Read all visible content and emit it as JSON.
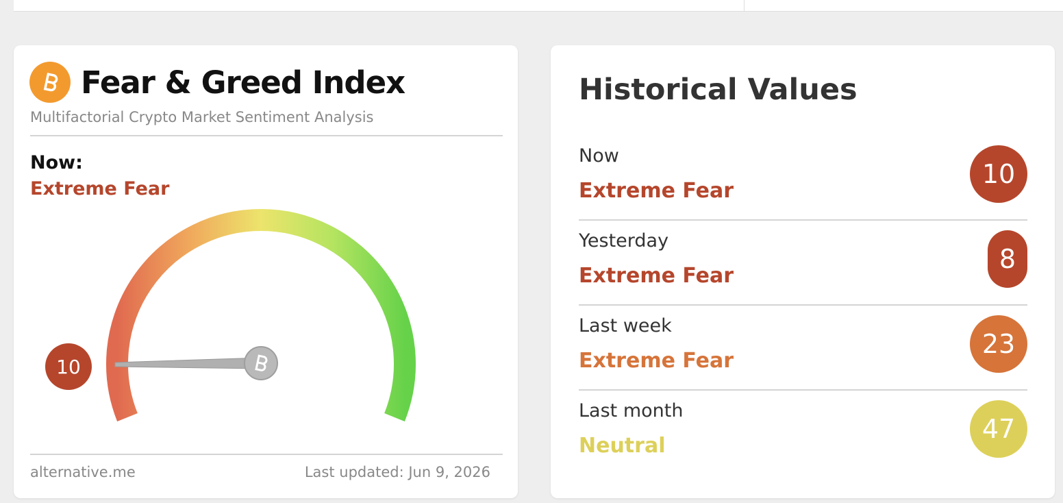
{
  "header": {
    "title": "Fear & Greed Index",
    "subtitle": "Multifactorial Crypto Market Sentiment Analysis"
  },
  "now": {
    "label": "Now:",
    "status": "Extreme Fear",
    "value": 10,
    "color": "#b5462c"
  },
  "footer": {
    "source": "alternative.me",
    "updated": "Last updated: Jun 9, 2026"
  },
  "history": {
    "title": "Historical Values",
    "rows": [
      {
        "label": "Now",
        "status": "Extreme Fear",
        "value": 10,
        "color": "#b5462c"
      },
      {
        "label": "Yesterday",
        "status": "Extreme Fear",
        "value": 8,
        "color": "#b5462c"
      },
      {
        "label": "Last week",
        "status": "Extreme Fear",
        "value": 23,
        "color": "#d6743a"
      },
      {
        "label": "Last month",
        "status": "Neutral",
        "value": 47,
        "color": "#ddd05a"
      }
    ]
  }
}
